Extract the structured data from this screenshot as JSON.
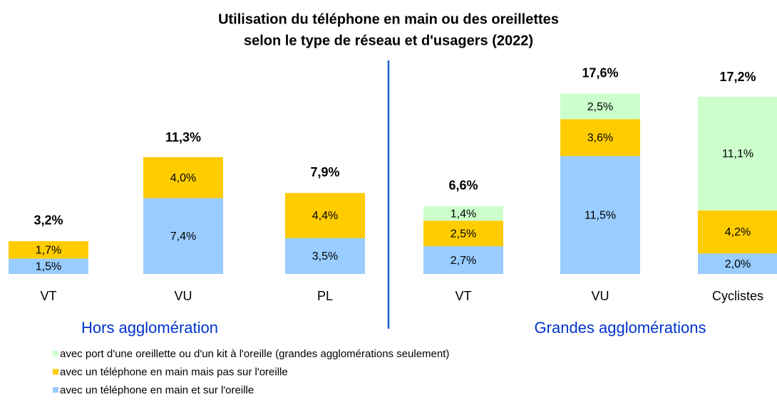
{
  "chart_data": {
    "type": "stacked_bar",
    "title": [
      "Utilisation du téléphone en main ou des oreillettes",
      "selon le type de réseau et d'usagers (2022)"
    ],
    "categories": [
      "VT",
      "VU",
      "PL",
      "VT",
      "VU",
      "Cyclistes"
    ],
    "group_labels": [
      "Hors agglomération",
      "Grandes agglomérations"
    ],
    "series": [
      {
        "name": "avec un téléphone en main et sur l'oreille",
        "color": "#99ccff",
        "values": [
          1.5,
          7.4,
          3.5,
          2.7,
          11.5,
          2.0
        ],
        "value_labels": [
          "1,5%",
          "7,4%",
          "3,5%",
          "2,7%",
          "11,5%",
          "2,0%"
        ]
      },
      {
        "name": "avec un téléphone en main mais pas sur l'oreille",
        "color": "#ffcc00",
        "values": [
          1.7,
          4.0,
          4.4,
          2.5,
          3.6,
          4.2
        ],
        "value_labels": [
          "1,7%",
          "4,0%",
          "4,4%",
          "2,5%",
          "3,6%",
          "4,2%"
        ]
      },
      {
        "name": "avec port d'une oreillette ou d'un kit à l'oreille (grandes agglomérations seulement)",
        "color": "#ccffcc",
        "values": [
          null,
          null,
          null,
          1.4,
          2.5,
          11.1
        ],
        "value_labels": [
          null,
          null,
          null,
          "1,4%",
          "2,5%",
          "11,1%"
        ]
      }
    ],
    "totals": [
      3.2,
      11.3,
      7.9,
      6.6,
      17.6,
      17.2
    ],
    "total_labels": [
      "3,2%",
      "11,3%",
      "7,9%",
      "6,6%",
      "17,6%",
      "17,2%"
    ],
    "ylim": [
      0,
      20
    ]
  }
}
